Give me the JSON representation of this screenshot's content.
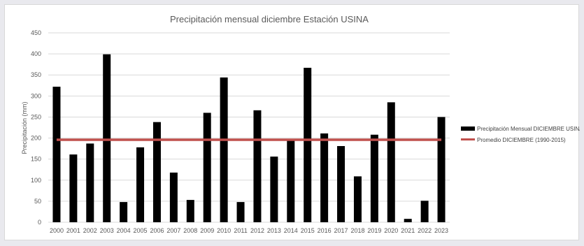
{
  "chart_data": {
    "type": "bar",
    "title": "Precipitación mensual diciembre Estación USINA",
    "ylabel": "Precipitación (mm)",
    "xlabel": "",
    "ylim": [
      0,
      450
    ],
    "yticks": [
      0,
      50,
      100,
      150,
      200,
      250,
      300,
      350,
      400,
      450
    ],
    "grid": true,
    "legend_position": "right",
    "categories": [
      "2000",
      "2001",
      "2002",
      "2003",
      "2004",
      "2005",
      "2006",
      "2007",
      "2008",
      "2009",
      "2010",
      "2011",
      "2012",
      "2013",
      "2014",
      "2015",
      "2016",
      "2017",
      "2018",
      "2019",
      "2020",
      "2021",
      "2022",
      "2023"
    ],
    "series": [
      {
        "name": "Precipitación Mensual DICIEMBRE USINA",
        "color": "#000000",
        "values": [
          322,
          161,
          187,
          399,
          48,
          178,
          238,
          118,
          53,
          260,
          344,
          48,
          266,
          156,
          194,
          367,
          211,
          181,
          109,
          208,
          285,
          8,
          51,
          250
        ]
      }
    ],
    "reference_line": {
      "name": "Promedio DICIEMBRE (1990-2015)",
      "color": "#c0504d",
      "value": 196
    }
  }
}
